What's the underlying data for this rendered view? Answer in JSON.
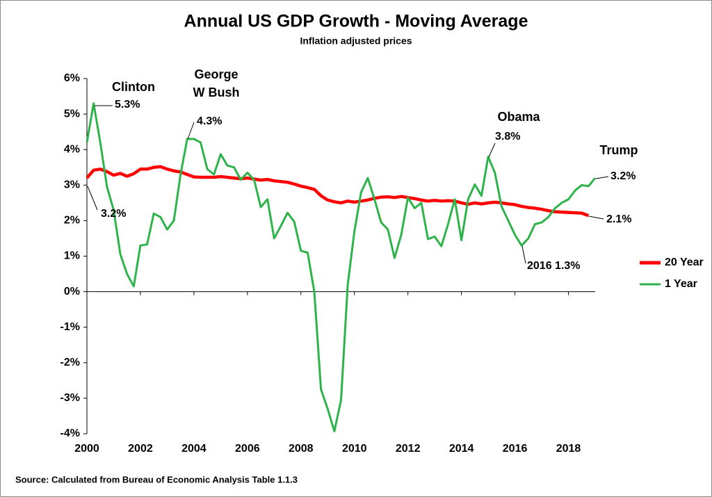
{
  "chart_data": {
    "type": "line",
    "title": "Annual US GDP Growth - Moving Average",
    "subtitle": "Inflation adjusted prices",
    "source": "Source: Calculated  from Bureau of Economic Analysis Table  1.1.3",
    "x": [
      2000,
      2000.25,
      2000.5,
      2000.75,
      2001,
      2001.25,
      2001.5,
      2001.75,
      2002,
      2002.25,
      2002.5,
      2002.75,
      2003,
      2003.25,
      2003.5,
      2003.75,
      2004,
      2004.25,
      2004.5,
      2004.75,
      2005,
      2005.25,
      2005.5,
      2005.75,
      2006,
      2006.25,
      2006.5,
      2006.75,
      2007,
      2007.25,
      2007.5,
      2007.75,
      2008,
      2008.25,
      2008.5,
      2008.75,
      2009,
      2009.25,
      2009.5,
      2009.75,
      2010,
      2010.25,
      2010.5,
      2010.75,
      2011,
      2011.25,
      2011.5,
      2011.75,
      2012,
      2012.25,
      2012.5,
      2012.75,
      2013,
      2013.25,
      2013.5,
      2013.75,
      2014,
      2014.25,
      2014.5,
      2014.75,
      2015,
      2015.25,
      2015.5,
      2015.75,
      2016,
      2016.25,
      2016.5,
      2016.75,
      2017,
      2017.25,
      2017.5,
      2017.75,
      2018,
      2018.25,
      2018.5,
      2018.75,
      2019
    ],
    "series": [
      {
        "name": "20 Year",
        "color": "#ff0000",
        "values": [
          3.2,
          3.42,
          3.45,
          3.38,
          3.28,
          3.33,
          3.25,
          3.32,
          3.45,
          3.45,
          3.5,
          3.52,
          3.45,
          3.4,
          3.37,
          3.3,
          3.23,
          3.22,
          3.22,
          3.22,
          3.24,
          3.22,
          3.2,
          3.18,
          3.2,
          3.17,
          3.14,
          3.16,
          3.12,
          3.1,
          3.08,
          3.03,
          2.97,
          2.93,
          2.88,
          2.7,
          2.58,
          2.53,
          2.5,
          2.55,
          2.52,
          2.55,
          2.58,
          2.63,
          2.66,
          2.67,
          2.65,
          2.68,
          2.65,
          2.62,
          2.58,
          2.55,
          2.57,
          2.55,
          2.56,
          2.55,
          2.5,
          2.46,
          2.5,
          2.47,
          2.5,
          2.52,
          2.5,
          2.47,
          2.45,
          2.4,
          2.37,
          2.35,
          2.32,
          2.28,
          2.25,
          2.24,
          2.23,
          2.22,
          2.21,
          2.14,
          null
        ]
      },
      {
        "name": "1 Year",
        "color": "#2db34a",
        "values": [
          4.2,
          5.3,
          4.2,
          2.95,
          2.3,
          1.05,
          0.5,
          0.15,
          1.3,
          1.33,
          2.2,
          2.1,
          1.75,
          2.0,
          3.3,
          4.3,
          4.3,
          4.2,
          3.45,
          3.3,
          3.87,
          3.55,
          3.5,
          3.15,
          3.35,
          3.15,
          2.38,
          2.6,
          1.5,
          1.85,
          2.22,
          1.97,
          1.15,
          1.1,
          0.0,
          -2.75,
          -3.3,
          -3.93,
          -3.05,
          0.2,
          1.7,
          2.8,
          3.2,
          2.6,
          1.95,
          1.75,
          0.95,
          1.6,
          2.65,
          2.35,
          2.5,
          1.48,
          1.55,
          1.28,
          1.9,
          2.6,
          1.45,
          2.6,
          3.02,
          2.7,
          3.8,
          3.35,
          2.4,
          2.0,
          1.6,
          1.3,
          1.5,
          1.9,
          1.95,
          2.1,
          2.35,
          2.5,
          2.6,
          2.85,
          3.0,
          2.97,
          3.2
        ]
      }
    ],
    "xlim": [
      2000,
      2019
    ],
    "xticks": [
      2000,
      2002,
      2004,
      2006,
      2008,
      2010,
      2012,
      2014,
      2016,
      2018
    ],
    "ylim": [
      -4,
      6
    ],
    "yticks": [
      {
        "value": -4,
        "label": "-4%"
      },
      {
        "value": -3,
        "label": "-3%"
      },
      {
        "value": -2,
        "label": "-2%"
      },
      {
        "value": -1,
        "label": "-1%"
      },
      {
        "value": 0,
        "label": "0%"
      },
      {
        "value": 1,
        "label": "1%"
      },
      {
        "value": 2,
        "label": "2%"
      },
      {
        "value": 3,
        "label": "3%"
      },
      {
        "value": 4,
        "label": "4%"
      },
      {
        "value": 5,
        "label": "5%"
      },
      {
        "value": 6,
        "label": "6%"
      }
    ],
    "legend": "right",
    "annotations": [
      "Clinton",
      "5.3%",
      "3.2%",
      "George",
      "W Bush",
      "4.3%",
      "Obama",
      "3.8%",
      "Trump",
      "3.2%",
      "2.1%",
      "2016 1.3%"
    ]
  }
}
